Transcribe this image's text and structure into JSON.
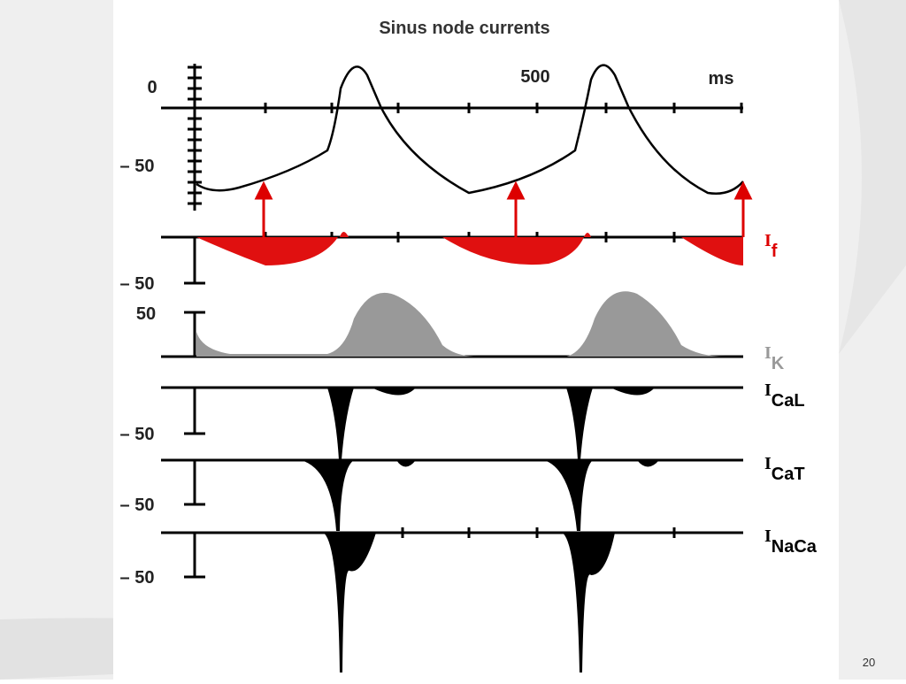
{
  "slide": {
    "number": "20"
  },
  "figure": {
    "title": "Sinus node currents",
    "time_axis": {
      "tick_label": "500",
      "unit": "ms"
    },
    "voltage": {
      "labels": [
        "0",
        "– 50"
      ]
    },
    "currents": [
      {
        "main": "I",
        "sub": "f",
        "scale": "– 50"
      },
      {
        "main": "I",
        "sub": "K",
        "scale": "50"
      },
      {
        "main": "I",
        "sub": "CaL",
        "scale": "– 50"
      },
      {
        "main": "I",
        "sub": "CaT",
        "scale": "– 50"
      },
      {
        "main": "I",
        "sub": "NaCa",
        "scale": "– 50"
      }
    ]
  }
}
